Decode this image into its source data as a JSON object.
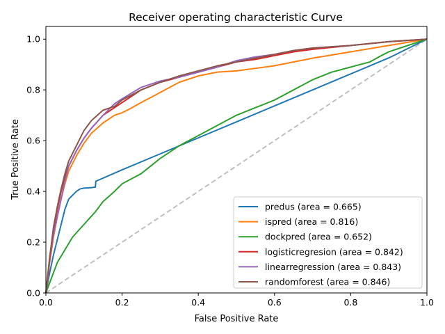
{
  "chart_data": {
    "type": "line",
    "title": "Receiver operating characteristic Curve",
    "xlabel": "False Positive Rate",
    "ylabel": "True Positive Rate",
    "xlim": [
      0,
      1
    ],
    "ylim": [
      0,
      1.05
    ],
    "xticks": [
      "0.0",
      "0.2",
      "0.4",
      "0.6",
      "0.8",
      "1.0"
    ],
    "yticks": [
      "0.0",
      "0.2",
      "0.4",
      "0.6",
      "0.8",
      "1.0"
    ],
    "grid": false,
    "legend_position": "lower right",
    "series": [
      {
        "name": "predus (area = 0.665)",
        "color": "#1f77b4",
        "x": [
          0,
          0.01,
          0.02,
          0.03,
          0.04,
          0.05,
          0.06,
          0.07,
          0.08,
          0.09,
          0.1,
          0.12,
          0.13,
          0.131,
          0.2,
          0.3,
          0.4,
          0.5,
          0.6,
          0.7,
          0.8,
          0.9,
          1.0
        ],
        "y": [
          0,
          0.08,
          0.15,
          0.21,
          0.27,
          0.33,
          0.37,
          0.385,
          0.4,
          0.41,
          0.413,
          0.415,
          0.417,
          0.44,
          0.485,
          0.548,
          0.611,
          0.674,
          0.737,
          0.8,
          0.863,
          0.926,
          1.0
        ]
      },
      {
        "name": "ispred (area = 0.816)",
        "color": "#ff7f0e",
        "x": [
          0,
          0.01,
          0.02,
          0.03,
          0.04,
          0.05,
          0.06,
          0.08,
          0.1,
          0.12,
          0.15,
          0.18,
          0.2,
          0.22,
          0.25,
          0.3,
          0.35,
          0.4,
          0.45,
          0.5,
          0.55,
          0.6,
          0.7,
          0.8,
          0.9,
          1.0
        ],
        "y": [
          0,
          0.12,
          0.22,
          0.3,
          0.37,
          0.43,
          0.48,
          0.54,
          0.59,
          0.63,
          0.67,
          0.7,
          0.71,
          0.725,
          0.75,
          0.79,
          0.83,
          0.855,
          0.87,
          0.875,
          0.885,
          0.895,
          0.925,
          0.95,
          0.975,
          1.0
        ]
      },
      {
        "name": "dockpred (area = 0.652)",
        "color": "#2ca02c",
        "x": [
          0,
          0.01,
          0.02,
          0.03,
          0.05,
          0.07,
          0.1,
          0.13,
          0.15,
          0.18,
          0.2,
          0.25,
          0.3,
          0.35,
          0.4,
          0.45,
          0.5,
          0.55,
          0.6,
          0.65,
          0.7,
          0.75,
          0.8,
          0.85,
          0.88,
          0.9,
          1.0
        ],
        "y": [
          0,
          0.04,
          0.08,
          0.12,
          0.17,
          0.22,
          0.27,
          0.32,
          0.36,
          0.4,
          0.43,
          0.47,
          0.53,
          0.58,
          0.62,
          0.66,
          0.7,
          0.73,
          0.76,
          0.8,
          0.84,
          0.87,
          0.89,
          0.91,
          0.935,
          0.95,
          1.0
        ]
      },
      {
        "name": "logisticregresion (area = 0.842)",
        "color": "#d62728",
        "x": [
          0,
          0.01,
          0.02,
          0.03,
          0.04,
          0.05,
          0.06,
          0.08,
          0.1,
          0.12,
          0.15,
          0.18,
          0.2,
          0.25,
          0.3,
          0.35,
          0.4,
          0.45,
          0.5,
          0.55,
          0.6,
          0.65,
          0.7,
          0.8,
          0.9,
          1.0
        ],
        "y": [
          0,
          0.14,
          0.25,
          0.33,
          0.4,
          0.46,
          0.5,
          0.56,
          0.61,
          0.65,
          0.7,
          0.73,
          0.75,
          0.8,
          0.83,
          0.85,
          0.87,
          0.89,
          0.91,
          0.92,
          0.935,
          0.95,
          0.96,
          0.975,
          0.99,
          1.0
        ]
      },
      {
        "name": "linearregression (area = 0.843)",
        "color": "#9467bd",
        "x": [
          0,
          0.01,
          0.02,
          0.03,
          0.04,
          0.05,
          0.06,
          0.08,
          0.1,
          0.12,
          0.15,
          0.18,
          0.2,
          0.25,
          0.3,
          0.35,
          0.4,
          0.45,
          0.5,
          0.55,
          0.6,
          0.65,
          0.7,
          0.8,
          0.9,
          1.0
        ],
        "y": [
          0,
          0.13,
          0.23,
          0.3,
          0.37,
          0.44,
          0.5,
          0.56,
          0.61,
          0.65,
          0.7,
          0.745,
          0.765,
          0.81,
          0.835,
          0.85,
          0.87,
          0.89,
          0.915,
          0.93,
          0.94,
          0.955,
          0.965,
          0.975,
          0.99,
          1.0
        ]
      },
      {
        "name": "randomforest (area = 0.846)",
        "color": "#8c564b",
        "x": [
          0,
          0.01,
          0.02,
          0.03,
          0.04,
          0.05,
          0.06,
          0.08,
          0.1,
          0.12,
          0.15,
          0.18,
          0.2,
          0.25,
          0.3,
          0.35,
          0.4,
          0.45,
          0.5,
          0.55,
          0.6,
          0.65,
          0.7,
          0.8,
          0.9,
          1.0
        ],
        "y": [
          0,
          0.14,
          0.26,
          0.34,
          0.41,
          0.47,
          0.52,
          0.58,
          0.64,
          0.68,
          0.72,
          0.735,
          0.76,
          0.8,
          0.83,
          0.855,
          0.875,
          0.895,
          0.91,
          0.925,
          0.94,
          0.955,
          0.965,
          0.975,
          0.99,
          1.0
        ]
      }
    ],
    "reference_line": {
      "x": [
        0,
        1
      ],
      "y": [
        0,
        1
      ],
      "color": "#bfbfbf",
      "style": "dashed"
    }
  }
}
